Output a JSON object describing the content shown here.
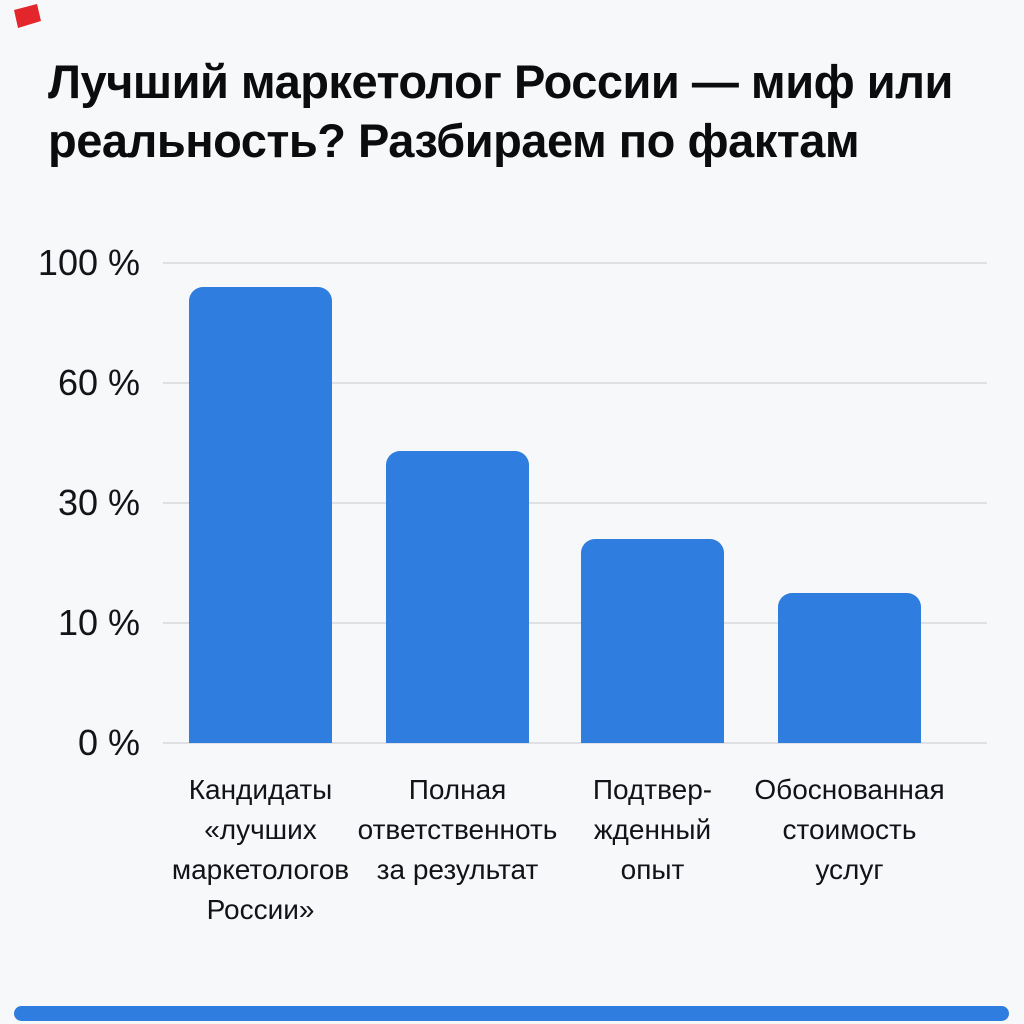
{
  "page": {
    "background": "#F7F8FA",
    "accent_red": "#E3262B",
    "accent_blue": "#2F7DDE",
    "grid_color": "#DFE0E3"
  },
  "title": {
    "text": "Лучший маркетолог России — миф или реальность? Разбираем по фактам",
    "lines": [
      "Лучший маркетолог России — миф или",
      "реальность? Разбираем по фактам"
    ]
  },
  "chart_data": {
    "type": "bar",
    "title": "Лучший маркетолог России — миф или реальность? Разбираем по фактам",
    "categories": [
      "Кандидаты «лучших маркетологов России»",
      "Полная ответственноть за результат",
      "Подтвер- жденный опыт",
      "Обоснованная стоимость услуг"
    ],
    "category_lines": [
      [
        "Кандидаты",
        "«лучших",
        "маркетологов",
        "России»"
      ],
      [
        "Полная",
        "ответственноть",
        "за результат"
      ],
      [
        "Подтвер-",
        "жденный",
        "опыт"
      ],
      [
        "Обоснованная",
        "стоимость",
        "услуг"
      ]
    ],
    "values": [
      92,
      43,
      24,
      15
    ],
    "unit": "%",
    "y_ticks": [
      {
        "value": 0,
        "label": "0 %"
      },
      {
        "value": 10,
        "label": "10 %"
      },
      {
        "value": 30,
        "label": "30 %"
      },
      {
        "value": 60,
        "label": "60 %"
      },
      {
        "value": 100,
        "label": "100 %"
      }
    ],
    "y_scale_note": "ticks are evenly spaced on screen (non-linear percent scale)",
    "xlabel": "",
    "ylabel": "",
    "grid": true,
    "legend": false,
    "bar_color": "#2F7DDE"
  }
}
